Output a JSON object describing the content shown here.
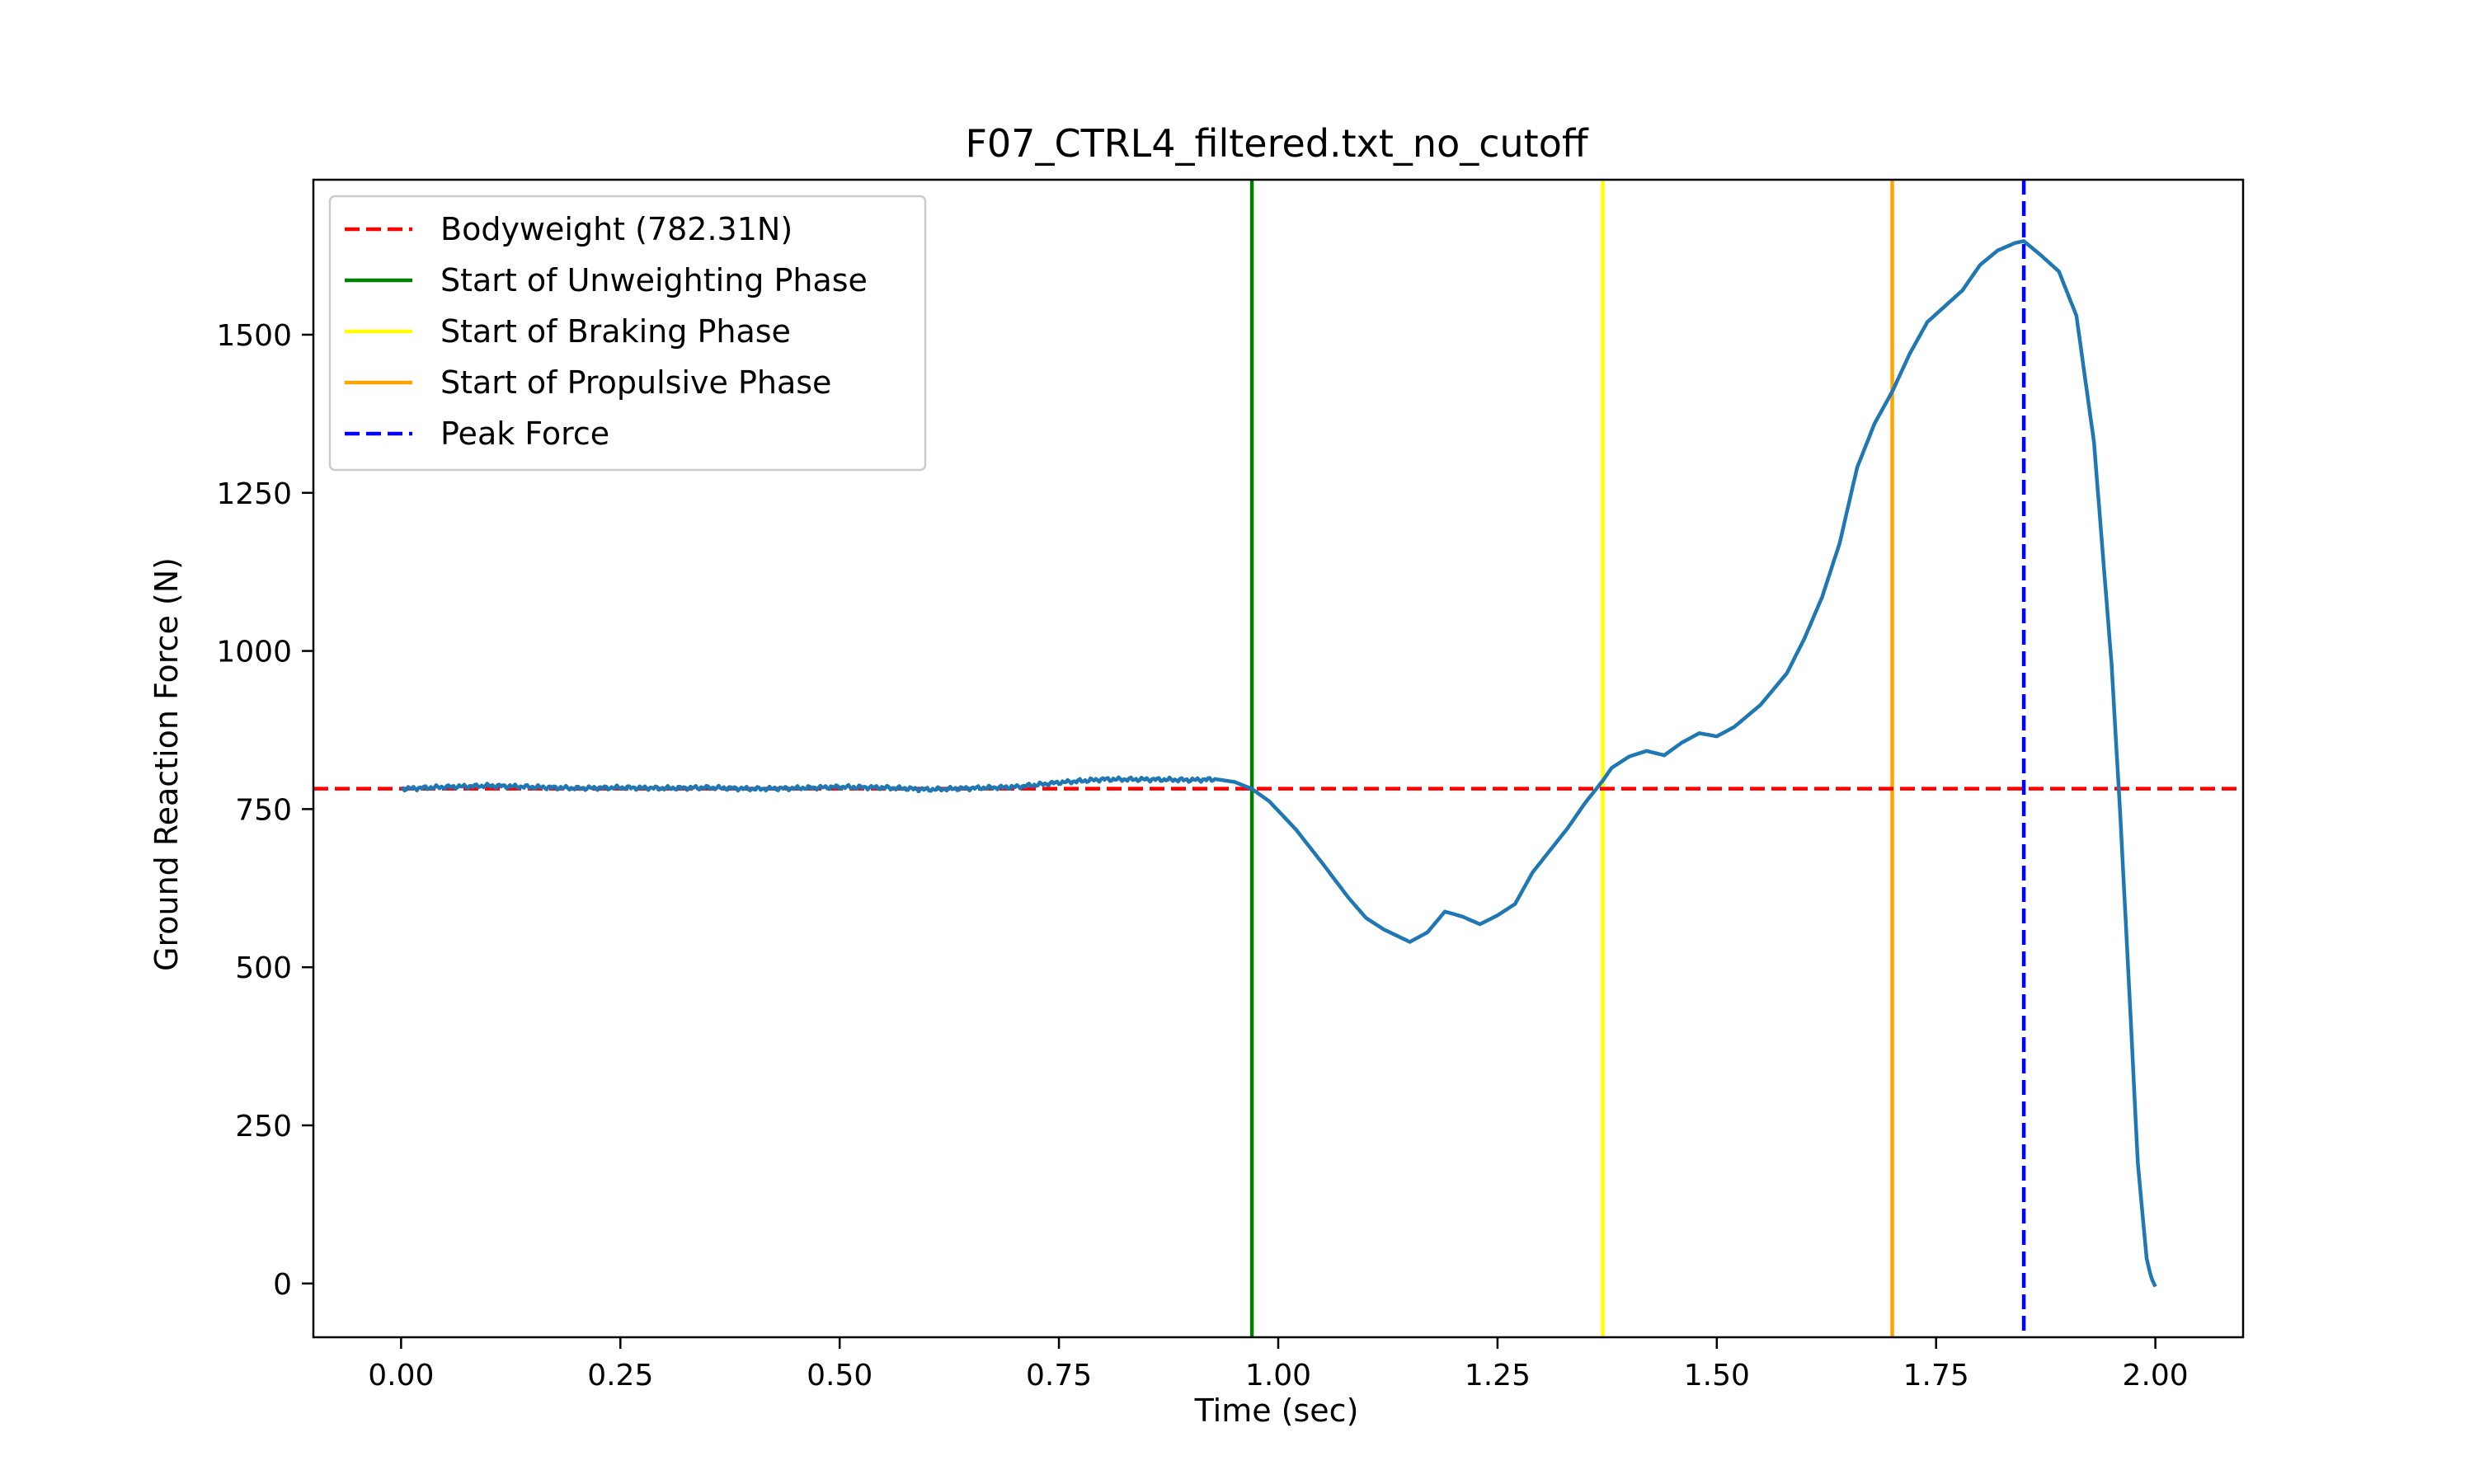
{
  "chart_data": {
    "type": "line",
    "title": "F07_CTRL4_filtered.txt_no_cutoff",
    "xlabel": "Time (sec)",
    "ylabel": "Ground Reaction Force (N)",
    "xlim": [
      -0.1,
      2.1
    ],
    "ylim": [
      -85,
      1745
    ],
    "xticks": [
      0.0,
      0.25,
      0.5,
      0.75,
      1.0,
      1.25,
      1.5,
      1.75,
      2.0
    ],
    "xtick_labels": [
      "0.00",
      "0.25",
      "0.50",
      "0.75",
      "1.00",
      "1.25",
      "1.50",
      "1.75",
      "2.00"
    ],
    "yticks": [
      0,
      250,
      500,
      750,
      1000,
      1250,
      1500
    ],
    "ytick_labels": [
      "0",
      "250",
      "500",
      "750",
      "1000",
      "1250",
      "1500"
    ],
    "grid": false,
    "legend_position": "top-left",
    "series": [
      {
        "name": "",
        "color": "#1f77b4",
        "x": [
          0.0,
          0.05,
          0.1,
          0.15,
          0.2,
          0.25,
          0.3,
          0.35,
          0.4,
          0.45,
          0.5,
          0.55,
          0.6,
          0.65,
          0.7,
          0.75,
          0.8,
          0.85,
          0.9,
          0.93,
          0.95,
          0.97,
          0.99,
          1.02,
          1.05,
          1.08,
          1.1,
          1.12,
          1.15,
          1.17,
          1.19,
          1.21,
          1.23,
          1.25,
          1.27,
          1.29,
          1.31,
          1.33,
          1.35,
          1.37,
          1.38,
          1.4,
          1.42,
          1.44,
          1.46,
          1.48,
          1.5,
          1.52,
          1.55,
          1.58,
          1.6,
          1.62,
          1.64,
          1.66,
          1.68,
          1.7,
          1.72,
          1.74,
          1.76,
          1.78,
          1.8,
          1.82,
          1.84,
          1.85,
          1.87,
          1.89,
          1.91,
          1.93,
          1.95,
          1.96,
          1.97,
          1.98,
          1.99,
          1.995,
          2.0
        ],
        "y": [
          782,
          785,
          787,
          785,
          783,
          784,
          783,
          784,
          782,
          783,
          785,
          784,
          781,
          783,
          785,
          792,
          797,
          797,
          796,
          797,
          793,
          782,
          762,
          718,
          665,
          610,
          578,
          560,
          540,
          555,
          588,
          580,
          568,
          582,
          600,
          650,
          685,
          720,
          760,
          795,
          815,
          833,
          842,
          835,
          855,
          870,
          865,
          880,
          915,
          965,
          1020,
          1085,
          1170,
          1290,
          1360,
          1410,
          1470,
          1520,
          1545,
          1570,
          1610,
          1633,
          1645,
          1648,
          1625,
          1600,
          1530,
          1330,
          980,
          740,
          470,
          190,
          40,
          10,
          -5
        ]
      }
    ],
    "reference_lines": [
      {
        "name": "Bodyweight (782.31N)",
        "orientation": "horizontal",
        "value": 782.31,
        "color": "#ff0000",
        "style": "dashed"
      },
      {
        "name": "Start of Unweighting Phase",
        "orientation": "vertical",
        "value": 0.97,
        "color": "#008000",
        "style": "solid"
      },
      {
        "name": "Start of Braking Phase",
        "orientation": "vertical",
        "value": 1.37,
        "color": "#ffff00",
        "style": "solid"
      },
      {
        "name": "Start of Propulsive Phase",
        "orientation": "vertical",
        "value": 1.7,
        "color": "#ffa500",
        "style": "solid"
      },
      {
        "name": "Peak Force",
        "orientation": "vertical",
        "value": 1.85,
        "color": "#0000ff",
        "style": "dashed"
      }
    ]
  }
}
